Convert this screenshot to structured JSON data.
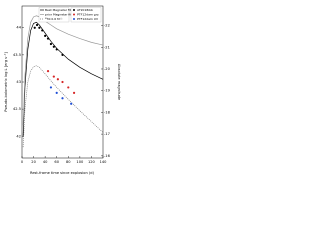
{
  "chart_data": {
    "type": "line",
    "x_label": "Rest-frame time since explosion (d)",
    "y_label": "Pseudo-bolometric log L [erg s⁻¹]",
    "y2_label": "Absolute magnitude",
    "xlim": [
      0,
      140
    ],
    "xticks": [
      0,
      20,
      40,
      60,
      80,
      100,
      120,
      140
    ],
    "ylim": [
      41.6,
      44.4
    ],
    "yticks": [
      42,
      42.5,
      43,
      43.5,
      44
    ],
    "y2lim": [
      -15.9,
      -22.9
    ],
    "y2ticks": [
      -16,
      -17,
      -18,
      -19,
      -20,
      -21,
      -22
    ],
    "series": [
      {
        "name": "Best Magnetar fit",
        "color": "#000000",
        "style": "solid",
        "x": [
          2,
          5,
          10,
          15,
          20,
          25,
          30,
          40,
          50,
          60,
          80,
          100,
          120,
          140
        ],
        "values": [
          42.0,
          42.9,
          43.6,
          43.95,
          44.08,
          44.1,
          44.05,
          43.9,
          43.75,
          43.62,
          43.42,
          43.27,
          43.15,
          43.05
        ]
      },
      {
        "name": "prior Magnetar fit",
        "color": "#999999",
        "style": "solid",
        "x": [
          2,
          5,
          10,
          15,
          20,
          25,
          30,
          40,
          50,
          60,
          80,
          100,
          120,
          140
        ],
        "values": [
          42.2,
          43.1,
          43.8,
          44.1,
          44.2,
          44.22,
          44.2,
          44.12,
          44.05,
          43.98,
          43.88,
          43.8,
          43.73,
          43.68
        ]
      },
      {
        "name": "⁵⁶Ni 0.6 M☉",
        "color": "#777777",
        "style": "dotted",
        "x": [
          2,
          5,
          10,
          15,
          20,
          25,
          30,
          40,
          50,
          60,
          80,
          100,
          120,
          140
        ],
        "values": [
          41.8,
          42.5,
          43.0,
          43.2,
          43.28,
          43.3,
          43.27,
          43.15,
          43.02,
          42.9,
          42.68,
          42.47,
          42.27,
          42.07
        ]
      },
      {
        "name": "AT2018ibb",
        "color": "#000000",
        "style": "points",
        "x": [
          22,
          26,
          30,
          35,
          40,
          45,
          50,
          55,
          60,
          70
        ],
        "values": [
          44.0,
          44.05,
          44.0,
          43.95,
          43.85,
          43.8,
          43.7,
          43.65,
          43.6,
          43.5
        ]
      },
      {
        "name": "PTF12dam grz",
        "color": "#d62728",
        "style": "points",
        "x": [
          45,
          55,
          62,
          70,
          80,
          90
        ],
        "values": [
          43.2,
          43.1,
          43.05,
          43.0,
          42.9,
          42.8
        ]
      },
      {
        "name": "PTF12dam UV",
        "color": "#1f4fd6",
        "style": "points",
        "x": [
          50,
          60,
          70,
          85
        ],
        "values": [
          42.9,
          42.8,
          42.7,
          42.6
        ]
      }
    ]
  }
}
